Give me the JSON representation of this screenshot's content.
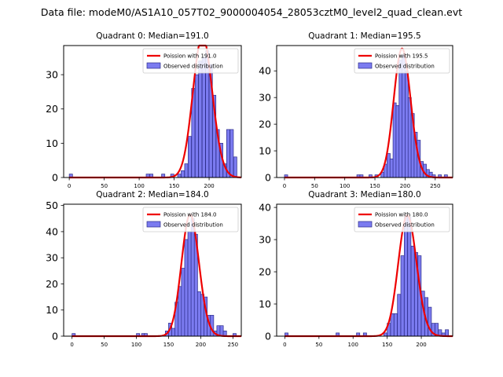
{
  "suptitle": "Data file: modeM0/AS1A10_057T02_9000004054_28053cztM0_level2_quad_clean.evt",
  "colors": {
    "bar_fill": "#7b7bf0",
    "bar_edge": "#2d2d8a",
    "poisson_line": "#ee0000",
    "legend_border": "#cccccc"
  },
  "chart_data": [
    {
      "type": "bar",
      "title": "Quadrant 0: Median=191.0",
      "legend": [
        "Poission with 191.0",
        "Observed distribution"
      ],
      "legend_position": "top-right",
      "xlim": [
        -8,
        246
      ],
      "ylim": [
        0,
        38.5
      ],
      "xticks": [
        0,
        50,
        100,
        150,
        200
      ],
      "yticks": [
        0,
        10,
        20,
        30
      ],
      "median": 191.0,
      "bin_width": 4.7,
      "curve_scale": 4.7,
      "bins": [
        [
          0,
          1
        ],
        [
          110,
          1
        ],
        [
          115,
          1
        ],
        [
          132,
          1
        ],
        [
          145,
          1
        ],
        [
          155,
          1
        ],
        [
          160,
          2
        ],
        [
          165,
          4
        ],
        [
          170,
          12
        ],
        [
          175,
          26
        ],
        [
          180,
          30
        ],
        [
          185,
          34
        ],
        [
          190,
          35
        ],
        [
          195,
          37
        ],
        [
          200,
          33
        ],
        [
          205,
          24
        ],
        [
          210,
          14
        ],
        [
          215,
          10
        ],
        [
          220,
          4
        ],
        [
          225,
          14
        ],
        [
          230,
          14
        ],
        [
          235,
          6
        ]
      ]
    },
    {
      "type": "bar",
      "title": "Quadrant 1: Median=195.5",
      "legend": [
        "Poission with 195.5",
        "Observed distribution"
      ],
      "legend_position": "top-right",
      "xlim": [
        -13,
        279
      ],
      "ylim": [
        0,
        49.5
      ],
      "xticks": [
        0,
        50,
        100,
        150,
        200,
        250
      ],
      "yticks": [
        0,
        10,
        20,
        30,
        40
      ],
      "median": 195.5,
      "bin_width": 5.35,
      "curve_scale": 5.35,
      "bins": [
        [
          0,
          1
        ],
        [
          120,
          1
        ],
        [
          125,
          1
        ],
        [
          140,
          1
        ],
        [
          150,
          1
        ],
        [
          160,
          2
        ],
        [
          165,
          5
        ],
        [
          170,
          9
        ],
        [
          175,
          7
        ],
        [
          180,
          28
        ],
        [
          185,
          27
        ],
        [
          190,
          44
        ],
        [
          195,
          46
        ],
        [
          200,
          40
        ],
        [
          205,
          30
        ],
        [
          210,
          24
        ],
        [
          215,
          17
        ],
        [
          220,
          14
        ],
        [
          225,
          6
        ],
        [
          230,
          5
        ],
        [
          235,
          3
        ],
        [
          240,
          2
        ],
        [
          245,
          1
        ],
        [
          255,
          1
        ],
        [
          265,
          1
        ]
      ]
    },
    {
      "type": "bar",
      "title": "Quadrant 2: Median=184.0",
      "legend": [
        "Poission with 184.0",
        "Observed distribution"
      ],
      "legend_position": "top-right",
      "xlim": [
        -13,
        263
      ],
      "ylim": [
        0,
        50.5
      ],
      "xticks": [
        0,
        50,
        100,
        150,
        200,
        250
      ],
      "yticks": [
        0,
        10,
        20,
        30,
        40,
        50
      ],
      "median": 184.0,
      "bin_width": 5.1,
      "curve_scale": 5.1,
      "bins": [
        [
          0,
          1
        ],
        [
          100,
          1
        ],
        [
          108,
          1
        ],
        [
          112,
          1
        ],
        [
          145,
          2
        ],
        [
          150,
          5
        ],
        [
          155,
          3
        ],
        [
          160,
          13
        ],
        [
          165,
          19
        ],
        [
          170,
          26
        ],
        [
          175,
          37
        ],
        [
          180,
          40
        ],
        [
          185,
          45
        ],
        [
          190,
          39
        ],
        [
          195,
          17
        ],
        [
          200,
          16
        ],
        [
          205,
          15
        ],
        [
          210,
          8
        ],
        [
          215,
          8
        ],
        [
          220,
          2
        ],
        [
          225,
          4
        ],
        [
          230,
          4
        ],
        [
          235,
          2
        ],
        [
          250,
          1
        ]
      ]
    },
    {
      "type": "bar",
      "title": "Quadrant 3: Median=180.0",
      "legend": [
        "Poission with 180.0",
        "Observed distribution"
      ],
      "legend_position": "top-right",
      "xlim": [
        -12,
        246
      ],
      "ylim": [
        0,
        41
      ],
      "xticks": [
        0,
        50,
        100,
        150,
        200
      ],
      "yticks": [
        0,
        10,
        20,
        30,
        40
      ],
      "median": 180.0,
      "bin_width": 4.82,
      "curve_scale": 4.82,
      "bins": [
        [
          0,
          1
        ],
        [
          75,
          1
        ],
        [
          105,
          1
        ],
        [
          115,
          1
        ],
        [
          145,
          1
        ],
        [
          150,
          4
        ],
        [
          155,
          7
        ],
        [
          160,
          7
        ],
        [
          165,
          13
        ],
        [
          170,
          25
        ],
        [
          175,
          37
        ],
        [
          180,
          37
        ],
        [
          185,
          28
        ],
        [
          190,
          26
        ],
        [
          195,
          25
        ],
        [
          200,
          14
        ],
        [
          205,
          12
        ],
        [
          210,
          9
        ],
        [
          215,
          4
        ],
        [
          220,
          4
        ],
        [
          225,
          2
        ],
        [
          230,
          1
        ],
        [
          235,
          2
        ]
      ]
    }
  ]
}
